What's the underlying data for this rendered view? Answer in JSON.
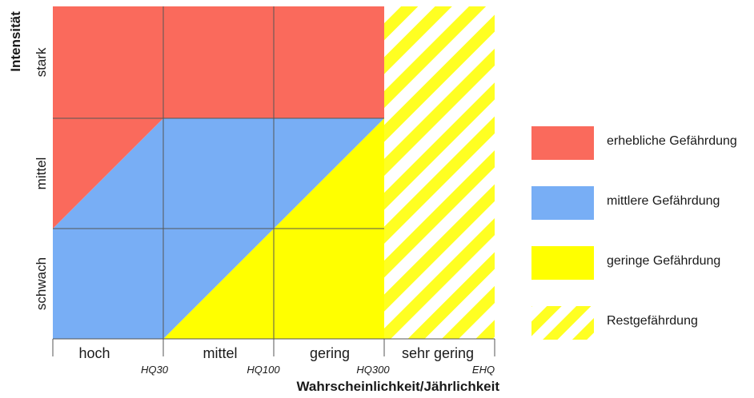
{
  "diagram": {
    "y_axis_title": "Intensität",
    "x_axis_title": "Wahrscheinlichkeit/Jährlichkeit",
    "y_levels": [
      "stark",
      "mittel",
      "schwach"
    ],
    "x_categories": [
      "hoch",
      "mittel",
      "gering",
      "sehr gering"
    ],
    "x_ticks": [
      "HQ30",
      "HQ100",
      "HQ300",
      "EHQ"
    ]
  },
  "colors": {
    "erheblich": "#fa6a5c",
    "mittel": "#78aef5",
    "gering": "#ffff00",
    "rest_stripe": "#ffff22",
    "grid": "#555555"
  },
  "legend": {
    "items": [
      {
        "label": "erhebliche Gefährdung",
        "swatch": "erheblich"
      },
      {
        "label": "mittlere Gefährdung",
        "swatch": "mittel"
      },
      {
        "label": "geringe Gefährdung",
        "swatch": "gering"
      },
      {
        "label": "Restgefährdung",
        "swatch": "rest"
      }
    ]
  }
}
